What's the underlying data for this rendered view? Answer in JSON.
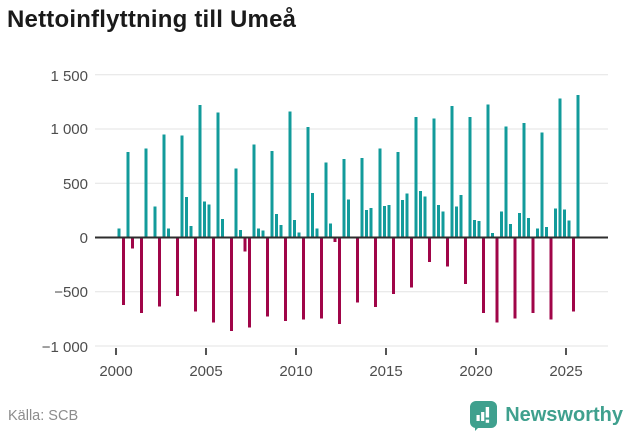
{
  "title": "Nettoinflyttning till Umeå",
  "footer": {
    "source": "Källa: SCB",
    "brand": "Newsworthy"
  },
  "chart": {
    "y_tick_labels": [
      "1 500",
      "1 000",
      "500",
      "0",
      "−500",
      "−1 000"
    ],
    "y_tick_values": [
      1500,
      1000,
      500,
      0,
      -500,
      -1000
    ],
    "x_tick_labels": [
      "2000",
      "2005",
      "2010",
      "2015",
      "2020",
      "2025"
    ],
    "colors": {
      "positive": "#129b9b",
      "negative": "#a00548",
      "brand": "#3fa08e",
      "grid": "#e3e3e3",
      "zero_line": "#2e2e2e",
      "axis_text": "#4d4d4d"
    }
  },
  "chart_data": {
    "type": "bar",
    "title": "Nettoinflyttning till Umeå",
    "frequency": "quarterly",
    "start": "2000 Q1",
    "end": "2025 Q3",
    "start_year": 2000,
    "ylim": [
      -1000,
      1500
    ],
    "legend": "none",
    "grid": "horizontal",
    "positive_color": "#129b9b",
    "negative_color": "#a00548",
    "values": [
      85,
      -620,
      790,
      -100,
      0,
      -695,
      820,
      0,
      285,
      -635,
      950,
      85,
      0,
      -540,
      940,
      375,
      105,
      -680,
      1220,
      330,
      305,
      -785,
      1150,
      170,
      0,
      -860,
      635,
      70,
      -130,
      -830,
      855,
      85,
      65,
      -730,
      795,
      215,
      115,
      -770,
      1160,
      160,
      45,
      -755,
      1020,
      410,
      85,
      -745,
      690,
      130,
      -40,
      -795,
      725,
      350,
      0,
      -600,
      735,
      255,
      270,
      -640,
      820,
      290,
      300,
      -520,
      790,
      345,
      405,
      -460,
      1110,
      430,
      380,
      -225,
      1095,
      300,
      240,
      -265,
      1210,
      285,
      390,
      -430,
      1110,
      160,
      150,
      -695,
      1225,
      40,
      -785,
      240,
      1025,
      125,
      -745,
      225,
      1055,
      180,
      -695,
      85,
      970,
      95,
      -755,
      265,
      1280,
      260,
      155,
      -680,
      1315
    ]
  }
}
